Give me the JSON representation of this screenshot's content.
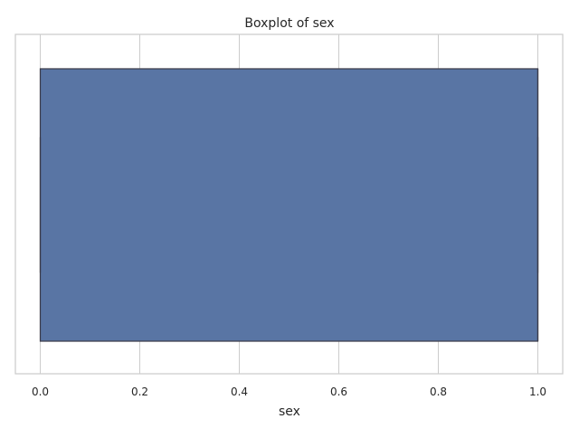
{
  "chart_data": {
    "type": "boxplot",
    "title": "Boxplot of sex",
    "xlabel": "sex",
    "ylabel": "",
    "orientation": "horizontal",
    "xlim": [
      -0.05,
      1.05
    ],
    "ticks": [
      0.0,
      0.2,
      0.4,
      0.6,
      0.8,
      1.0
    ],
    "tick_labels": [
      "0.0",
      "0.2",
      "0.4",
      "0.6",
      "0.8",
      "1.0"
    ],
    "grid": true,
    "box": {
      "min": 0.0,
      "q1": 0.0,
      "median": 1.0,
      "q3": 1.0,
      "max": 1.0,
      "fill_color": "#5975a4",
      "edge_color": "#3c3c4a"
    },
    "grid_color": "#cccccc",
    "spine_color": "#cccccc"
  }
}
